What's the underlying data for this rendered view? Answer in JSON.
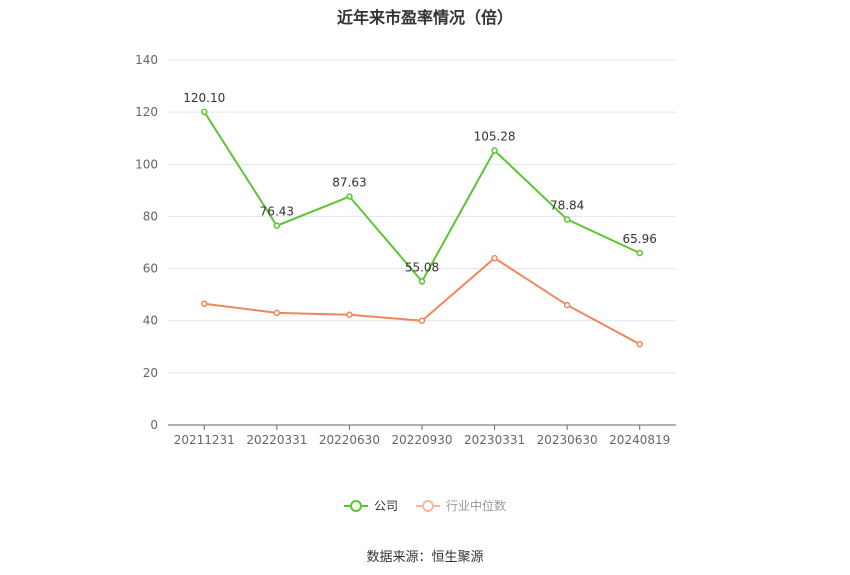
{
  "chart_data": {
    "type": "line",
    "title": "近年来市盈率情况（倍）",
    "categories": [
      "20211231",
      "20220331",
      "20220630",
      "20220930",
      "20230331",
      "20230630",
      "20240819"
    ],
    "ylim": [
      0,
      140
    ],
    "yticks": [
      0,
      20,
      40,
      60,
      80,
      100,
      120,
      140
    ],
    "grid": true,
    "legend_position": "bottom",
    "series": [
      {
        "name": "公司",
        "color": "#5cc534",
        "values": [
          120.1,
          76.43,
          87.63,
          55.08,
          105.28,
          78.84,
          65.96
        ],
        "labels": [
          "120.10",
          "76.43",
          "87.63",
          "55.08",
          "105.28",
          "78.84",
          "65.96"
        ]
      },
      {
        "name": "行业中位数",
        "color": "#f0875a",
        "values": [
          46.5,
          43.0,
          42.3,
          40.0,
          64.0,
          46.0,
          31.0
        ]
      }
    ]
  },
  "source": "数据来源：恒生聚源"
}
